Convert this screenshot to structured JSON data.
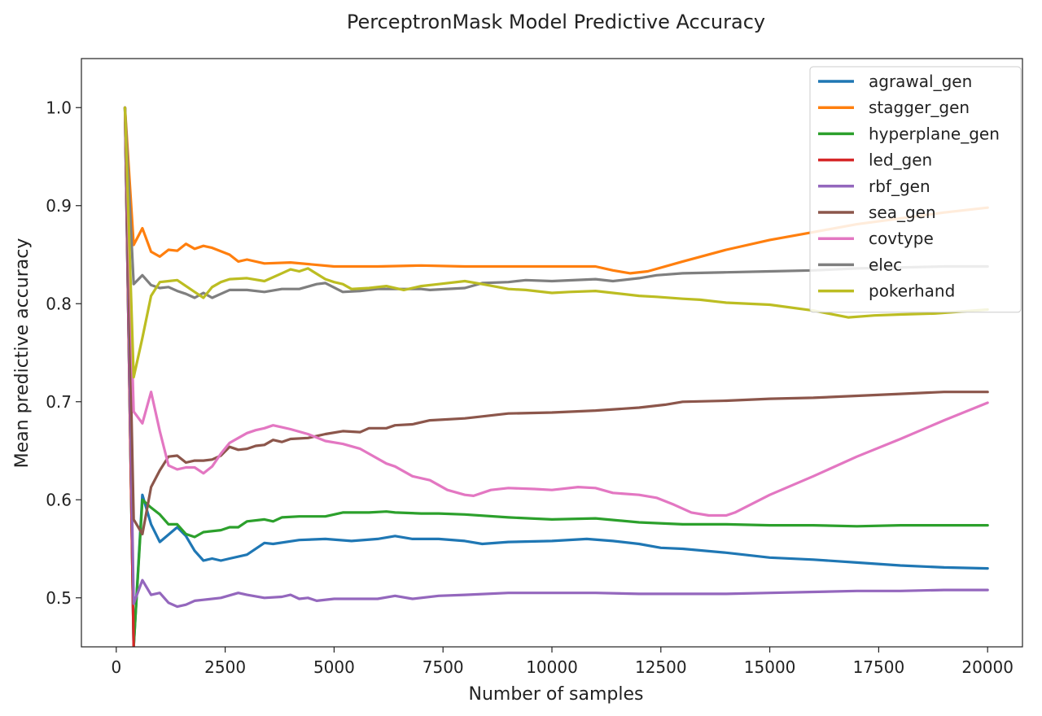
{
  "chart_data": {
    "type": "line",
    "title": "PerceptronMask Model Predictive Accuracy",
    "xlabel": "Number of samples",
    "ylabel": "Mean predictive accuracy",
    "xlim": [
      -800,
      20800
    ],
    "ylim": [
      0.45,
      1.05
    ],
    "xticks": [
      0,
      2500,
      5000,
      7500,
      10000,
      12500,
      15000,
      17500,
      20000
    ],
    "yticks": [
      0.5,
      0.6,
      0.7,
      0.8,
      0.9,
      1.0
    ],
    "ytick_labels": [
      "0.5",
      "0.6",
      "0.7",
      "0.8",
      "0.9",
      "1.0"
    ],
    "legend_position": "top-right",
    "grid": false,
    "series": [
      {
        "name": "agrawal_gen",
        "color": "#1f77b4",
        "x": [
          200,
          400,
          600,
          800,
          1000,
          1400,
          1600,
          1800,
          2000,
          2200,
          2400,
          2600,
          3000,
          3400,
          3600,
          4200,
          4800,
          5400,
          6000,
          6400,
          6800,
          7400,
          8000,
          8400,
          9000,
          10000,
          10800,
          11400,
          12000,
          12500,
          13000,
          14000,
          15000,
          16000,
          17000,
          18000,
          19000,
          20000
        ],
        "y": [
          1.0,
          0.45,
          0.605,
          0.575,
          0.557,
          0.572,
          0.563,
          0.548,
          0.538,
          0.54,
          0.538,
          0.54,
          0.544,
          0.556,
          0.555,
          0.559,
          0.56,
          0.558,
          0.56,
          0.563,
          0.56,
          0.56,
          0.558,
          0.555,
          0.557,
          0.558,
          0.56,
          0.558,
          0.555,
          0.551,
          0.55,
          0.546,
          0.541,
          0.539,
          0.536,
          0.533,
          0.531,
          0.53
        ]
      },
      {
        "name": "stagger_gen",
        "color": "#ff7f0e",
        "x": [
          200,
          400,
          600,
          800,
          1000,
          1200,
          1400,
          1600,
          1800,
          2000,
          2200,
          2600,
          2800,
          3000,
          3400,
          4000,
          5000,
          6000,
          7000,
          8000,
          9000,
          10000,
          11000,
          11400,
          11800,
          12200,
          13000,
          14000,
          15000,
          16000,
          17000,
          18000,
          19000,
          20000
        ],
        "y": [
          1.0,
          0.86,
          0.877,
          0.853,
          0.848,
          0.855,
          0.854,
          0.861,
          0.856,
          0.859,
          0.857,
          0.85,
          0.843,
          0.845,
          0.841,
          0.842,
          0.838,
          0.838,
          0.839,
          0.838,
          0.838,
          0.838,
          0.838,
          0.834,
          0.831,
          0.833,
          0.843,
          0.855,
          0.865,
          0.873,
          0.881,
          0.887,
          0.893,
          0.898
        ]
      },
      {
        "name": "hyperplane_gen",
        "color": "#2ca02c",
        "x": [
          200,
          400,
          600,
          800,
          1000,
          1200,
          1400,
          1600,
          1800,
          2000,
          2400,
          2600,
          2800,
          3000,
          3400,
          3600,
          3800,
          4200,
          4800,
          5200,
          5800,
          6200,
          6400,
          7000,
          7400,
          8000,
          9000,
          10000,
          11000,
          12000,
          13000,
          14000,
          15000,
          16000,
          17000,
          18000,
          19000,
          20000
        ],
        "y": [
          1.0,
          0.45,
          0.6,
          0.592,
          0.585,
          0.575,
          0.575,
          0.565,
          0.562,
          0.567,
          0.569,
          0.572,
          0.572,
          0.578,
          0.58,
          0.578,
          0.582,
          0.583,
          0.583,
          0.587,
          0.587,
          0.588,
          0.587,
          0.586,
          0.586,
          0.585,
          0.582,
          0.58,
          0.581,
          0.577,
          0.575,
          0.575,
          0.574,
          0.574,
          0.573,
          0.574,
          0.574,
          0.574
        ]
      },
      {
        "name": "led_gen",
        "color": "#d62728",
        "x": [
          200,
          400
        ],
        "y": [
          1.0,
          0.45
        ]
      },
      {
        "name": "rbf_gen",
        "color": "#9467bd",
        "x": [
          200,
          400,
          600,
          800,
          1000,
          1200,
          1400,
          1600,
          1800,
          2000,
          2400,
          2800,
          3000,
          3400,
          3800,
          4000,
          4200,
          4400,
          4600,
          5000,
          6000,
          6400,
          6800,
          7400,
          8000,
          9000,
          10000,
          11000,
          12000,
          13000,
          14000,
          15000,
          16000,
          17000,
          18000,
          19000,
          20000
        ],
        "y": [
          1.0,
          0.494,
          0.518,
          0.503,
          0.505,
          0.495,
          0.491,
          0.493,
          0.497,
          0.498,
          0.5,
          0.505,
          0.503,
          0.5,
          0.501,
          0.503,
          0.499,
          0.5,
          0.497,
          0.499,
          0.499,
          0.502,
          0.499,
          0.502,
          0.503,
          0.505,
          0.505,
          0.505,
          0.504,
          0.504,
          0.504,
          0.505,
          0.506,
          0.507,
          0.507,
          0.508,
          0.508
        ]
      },
      {
        "name": "sea_gen",
        "color": "#8c564b",
        "x": [
          200,
          400,
          600,
          800,
          1000,
          1200,
          1400,
          1600,
          1800,
          2000,
          2200,
          2400,
          2600,
          2800,
          3000,
          3200,
          3400,
          3600,
          3800,
          4000,
          4400,
          4800,
          5200,
          5600,
          5800,
          6200,
          6400,
          6800,
          7200,
          8000,
          8400,
          9000,
          10000,
          11000,
          12000,
          12600,
          13000,
          14000,
          15000,
          16000,
          17000,
          18000,
          19000,
          20000
        ],
        "y": [
          1.0,
          0.58,
          0.565,
          0.613,
          0.63,
          0.644,
          0.645,
          0.638,
          0.64,
          0.64,
          0.641,
          0.645,
          0.654,
          0.651,
          0.652,
          0.655,
          0.656,
          0.661,
          0.659,
          0.662,
          0.663,
          0.667,
          0.67,
          0.669,
          0.673,
          0.673,
          0.676,
          0.677,
          0.681,
          0.683,
          0.685,
          0.688,
          0.689,
          0.691,
          0.694,
          0.697,
          0.7,
          0.701,
          0.703,
          0.704,
          0.706,
          0.708,
          0.71,
          0.71
        ]
      },
      {
        "name": "covtype",
        "color": "#e377c2",
        "x": [
          200,
          400,
          600,
          800,
          1000,
          1200,
          1400,
          1600,
          1800,
          2000,
          2200,
          2400,
          2600,
          2800,
          3000,
          3200,
          3400,
          3600,
          3800,
          4000,
          4400,
          4800,
          5200,
          5600,
          5800,
          6200,
          6400,
          6800,
          7200,
          7600,
          8000,
          8200,
          8600,
          9000,
          9600,
          10000,
          10600,
          11000,
          11400,
          12000,
          12400,
          12800,
          13200,
          13600,
          14000,
          14200,
          15000,
          16000,
          17000,
          18000,
          19000,
          20000
        ],
        "y": [
          1.0,
          0.69,
          0.678,
          0.71,
          0.67,
          0.635,
          0.631,
          0.633,
          0.633,
          0.627,
          0.634,
          0.647,
          0.658,
          0.663,
          0.668,
          0.671,
          0.673,
          0.676,
          0.674,
          0.672,
          0.667,
          0.66,
          0.657,
          0.652,
          0.647,
          0.637,
          0.634,
          0.624,
          0.62,
          0.61,
          0.605,
          0.604,
          0.61,
          0.612,
          0.611,
          0.61,
          0.613,
          0.612,
          0.607,
          0.605,
          0.602,
          0.595,
          0.587,
          0.584,
          0.584,
          0.587,
          0.605,
          0.624,
          0.644,
          0.662,
          0.681,
          0.699
        ]
      },
      {
        "name": "elec",
        "color": "#7f7f7f",
        "x": [
          200,
          400,
          600,
          800,
          1000,
          1200,
          1400,
          1600,
          1800,
          2000,
          2200,
          2400,
          2600,
          3000,
          3400,
          3800,
          4200,
          4600,
          4800,
          5200,
          5600,
          6000,
          6600,
          7000,
          7200,
          8000,
          8400,
          9000,
          9400,
          10000,
          11000,
          11400,
          12000,
          12400,
          13000,
          14000,
          15000,
          16000,
          17000,
          18000,
          19000,
          20000
        ],
        "y": [
          1.0,
          0.82,
          0.829,
          0.819,
          0.816,
          0.817,
          0.813,
          0.81,
          0.806,
          0.811,
          0.806,
          0.81,
          0.814,
          0.814,
          0.812,
          0.815,
          0.815,
          0.82,
          0.821,
          0.812,
          0.813,
          0.815,
          0.815,
          0.815,
          0.814,
          0.816,
          0.821,
          0.822,
          0.824,
          0.823,
          0.825,
          0.823,
          0.826,
          0.829,
          0.831,
          0.832,
          0.833,
          0.834,
          0.836,
          0.837,
          0.838,
          0.838
        ]
      },
      {
        "name": "pokerhand",
        "color": "#bcbd22",
        "x": [
          200,
          400,
          600,
          800,
          1000,
          1200,
          1400,
          1600,
          1800,
          2000,
          2200,
          2400,
          2600,
          3000,
          3400,
          3800,
          4000,
          4200,
          4400,
          4800,
          5000,
          5200,
          5400,
          5800,
          6200,
          6600,
          7000,
          7400,
          8000,
          8400,
          9000,
          9400,
          10000,
          10400,
          11000,
          11400,
          12000,
          12400,
          13000,
          13400,
          13800,
          14000,
          15000,
          16000,
          16800,
          17400,
          18000,
          18800,
          19400,
          20000
        ],
        "y": [
          1.0,
          0.725,
          0.765,
          0.808,
          0.822,
          0.823,
          0.824,
          0.818,
          0.812,
          0.806,
          0.817,
          0.822,
          0.825,
          0.826,
          0.823,
          0.831,
          0.835,
          0.833,
          0.836,
          0.825,
          0.822,
          0.82,
          0.815,
          0.816,
          0.818,
          0.814,
          0.818,
          0.82,
          0.823,
          0.82,
          0.815,
          0.814,
          0.811,
          0.812,
          0.813,
          0.811,
          0.808,
          0.807,
          0.805,
          0.804,
          0.802,
          0.801,
          0.799,
          0.793,
          0.786,
          0.788,
          0.789,
          0.79,
          0.792,
          0.794
        ]
      }
    ]
  }
}
